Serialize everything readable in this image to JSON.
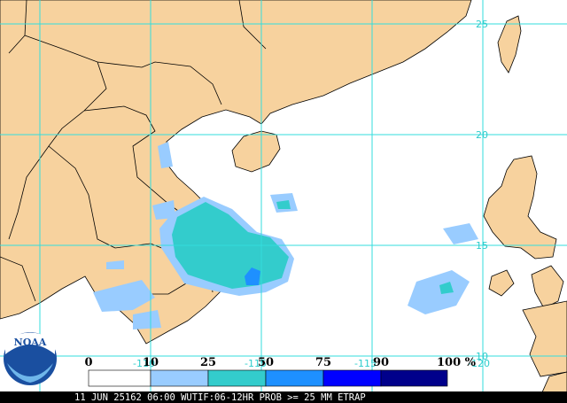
{
  "map": {
    "lat_labels": [
      "25",
      "20",
      "15",
      "10"
    ],
    "lon_labels": [
      "-110",
      "-115",
      "-115",
      "-120"
    ]
  },
  "legend": {
    "labels": [
      "0",
      "10",
      "25",
      "50",
      "75",
      "90",
      "100 %"
    ],
    "colors": [
      "#ffffff",
      "#99ccff",
      "#33cccc",
      "#1e90ff",
      "#0000ff",
      "#00008b"
    ]
  },
  "logo": "NOAA",
  "caption": "11 JUN 25162 06:00 WUTIF:06-12HR PROB >= 25 MM ETRAP"
}
